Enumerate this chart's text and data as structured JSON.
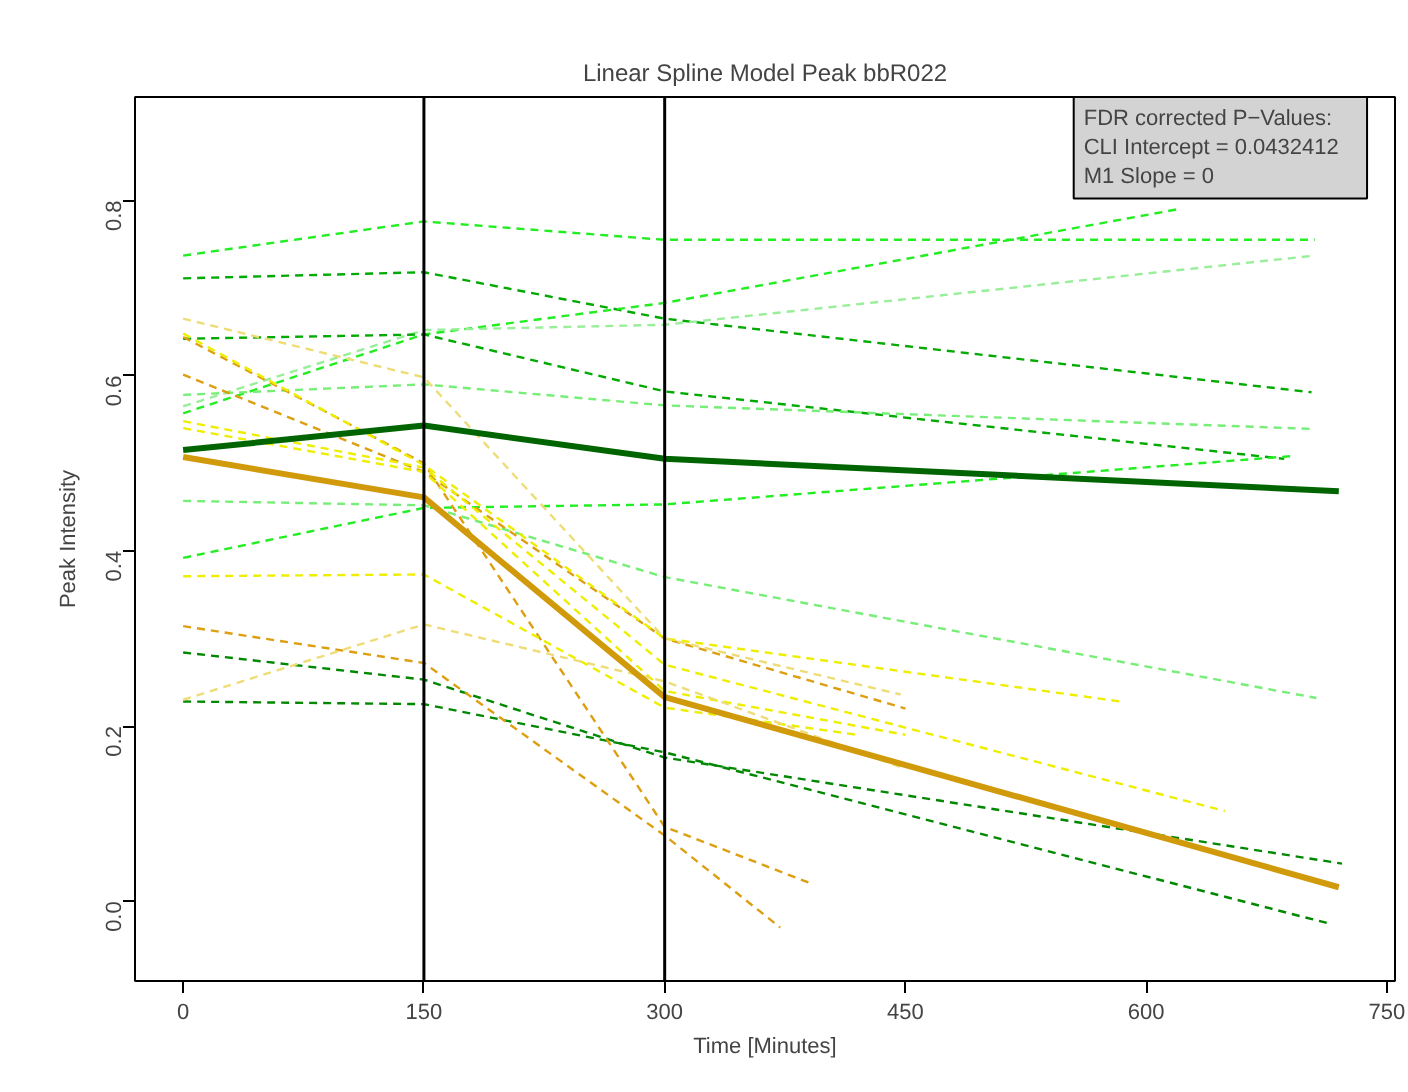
{
  "chart_data": {
    "type": "line",
    "title": "Linear Spline Model Peak bbR022",
    "xlabel": "Time [Minutes]",
    "ylabel": "Peak Intensity",
    "xlim": [
      -30,
      755
    ],
    "ylim": [
      -0.091,
      0.918
    ],
    "xticks": [
      0,
      150,
      300,
      450,
      600,
      750
    ],
    "yticks": [
      {
        "value": 0,
        "label": "0.0"
      },
      {
        "value": 0.2,
        "label": "0.2"
      },
      {
        "value": 0.4,
        "label": "0.4"
      },
      {
        "value": 0.6,
        "label": "0.6"
      },
      {
        "value": 0.8,
        "label": "0.8"
      }
    ],
    "grid": false,
    "marker": "none",
    "ref_lines": [
      {
        "axis": "x",
        "value": 150,
        "color": "#000000"
      },
      {
        "axis": "x",
        "value": 300,
        "color": "#000000"
      }
    ],
    "annotations": [
      "FDR corrected P−Values:",
      "CLI Intercept = 0.0432412",
      "M1 Slope = 0"
    ],
    "series": [
      {
        "line_style": "dashed",
        "color": "#22ee22",
        "x": [
          0,
          150,
          300,
          705
        ],
        "values": [
          0.737,
          0.776,
          0.755,
          0.755
        ]
      },
      {
        "line_style": "dashed",
        "color": "#00aa00",
        "x": [
          0,
          150,
          300,
          703
        ],
        "values": [
          0.711,
          0.718,
          0.665,
          0.581
        ]
      },
      {
        "line_style": "dashed",
        "color": "#22ee22",
        "x": [
          0,
          150,
          300,
          620
        ],
        "values": [
          0.557,
          0.647,
          0.683,
          0.79
        ]
      },
      {
        "line_style": "dashed",
        "color": "#99ee99",
        "x": [
          0,
          150,
          300,
          705
        ],
        "values": [
          0.565,
          0.652,
          0.658,
          0.737
        ]
      },
      {
        "line_style": "dashed",
        "color": "#00aa00",
        "x": [
          0,
          150,
          300,
          686
        ],
        "values": [
          0.642,
          0.647,
          0.582,
          0.505
        ]
      },
      {
        "line_style": "dashed",
        "color": "#22ee22",
        "x": [
          0,
          150,
          300,
          690
        ],
        "values": [
          0.392,
          0.449,
          0.453,
          0.508
        ]
      },
      {
        "line_style": "dashed",
        "color": "#77ee77",
        "x": [
          0,
          150,
          300,
          706
        ],
        "values": [
          0.457,
          0.452,
          0.37,
          0.232
        ]
      },
      {
        "line_style": "dashed",
        "color": "#77ee77",
        "x": [
          0,
          150,
          300,
          705
        ],
        "values": [
          0.578,
          0.59,
          0.566,
          0.539
        ]
      },
      {
        "line_style": "dashed",
        "color": "#008800",
        "x": [
          0,
          150,
          300,
          722
        ],
        "values": [
          0.284,
          0.253,
          0.164,
          0.043
        ]
      },
      {
        "line_style": "dashed",
        "color": "#008800",
        "x": [
          0,
          150,
          300,
          713
        ],
        "values": [
          0.228,
          0.225,
          0.17,
          -0.025
        ]
      },
      {
        "line_style": "dashed",
        "color": "#dd9f10",
        "x": [
          0,
          150,
          300,
          372
        ],
        "values": [
          0.314,
          0.272,
          0.075,
          -0.03
        ]
      },
      {
        "line_style": "dashed",
        "color": "#dd9f10",
        "x": [
          0,
          150,
          300,
          393
        ],
        "values": [
          0.644,
          0.5,
          0.085,
          0.019
        ]
      },
      {
        "line_style": "dashed",
        "color": "#dd9f10",
        "x": [
          0,
          150,
          300,
          450
        ],
        "values": [
          0.601,
          0.49,
          0.3,
          0.22
        ]
      },
      {
        "line_style": "dashed",
        "color": "#eeee00",
        "x": [
          0,
          150,
          300,
          584
        ],
        "values": [
          0.648,
          0.498,
          0.3,
          0.228
        ]
      },
      {
        "line_style": "dashed",
        "color": "#eedd77",
        "x": [
          0,
          150,
          300,
          447
        ],
        "values": [
          0.665,
          0.598,
          0.3,
          0.236
        ]
      },
      {
        "line_style": "dashed",
        "color": "#eeee00",
        "x": [
          0,
          150,
          300,
          649
        ],
        "values": [
          0.548,
          0.495,
          0.27,
          0.103
        ]
      },
      {
        "line_style": "dashed",
        "color": "#eeee00",
        "x": [
          0,
          150,
          300,
          450
        ],
        "values": [
          0.54,
          0.49,
          0.24,
          0.19
        ]
      },
      {
        "line_style": "dashed",
        "color": "#eeee00",
        "x": [
          0,
          150,
          300,
          420
        ],
        "values": [
          0.371,
          0.373,
          0.221,
          0.19
        ]
      },
      {
        "line_style": "dashed",
        "color": "#eedd77",
        "x": [
          0,
          150,
          300,
          447
        ],
        "values": [
          0.23,
          0.316,
          0.251,
          0.153
        ]
      },
      {
        "line_style": "solid",
        "color": "#006400",
        "x": [
          0,
          150,
          300,
          720
        ],
        "values": [
          0.515,
          0.543,
          0.505,
          0.468
        ]
      },
      {
        "line_style": "solid",
        "color": "#d09a0a",
        "x": [
          0,
          150,
          300,
          720
        ],
        "values": [
          0.507,
          0.461,
          0.233,
          0.016
        ]
      }
    ]
  }
}
